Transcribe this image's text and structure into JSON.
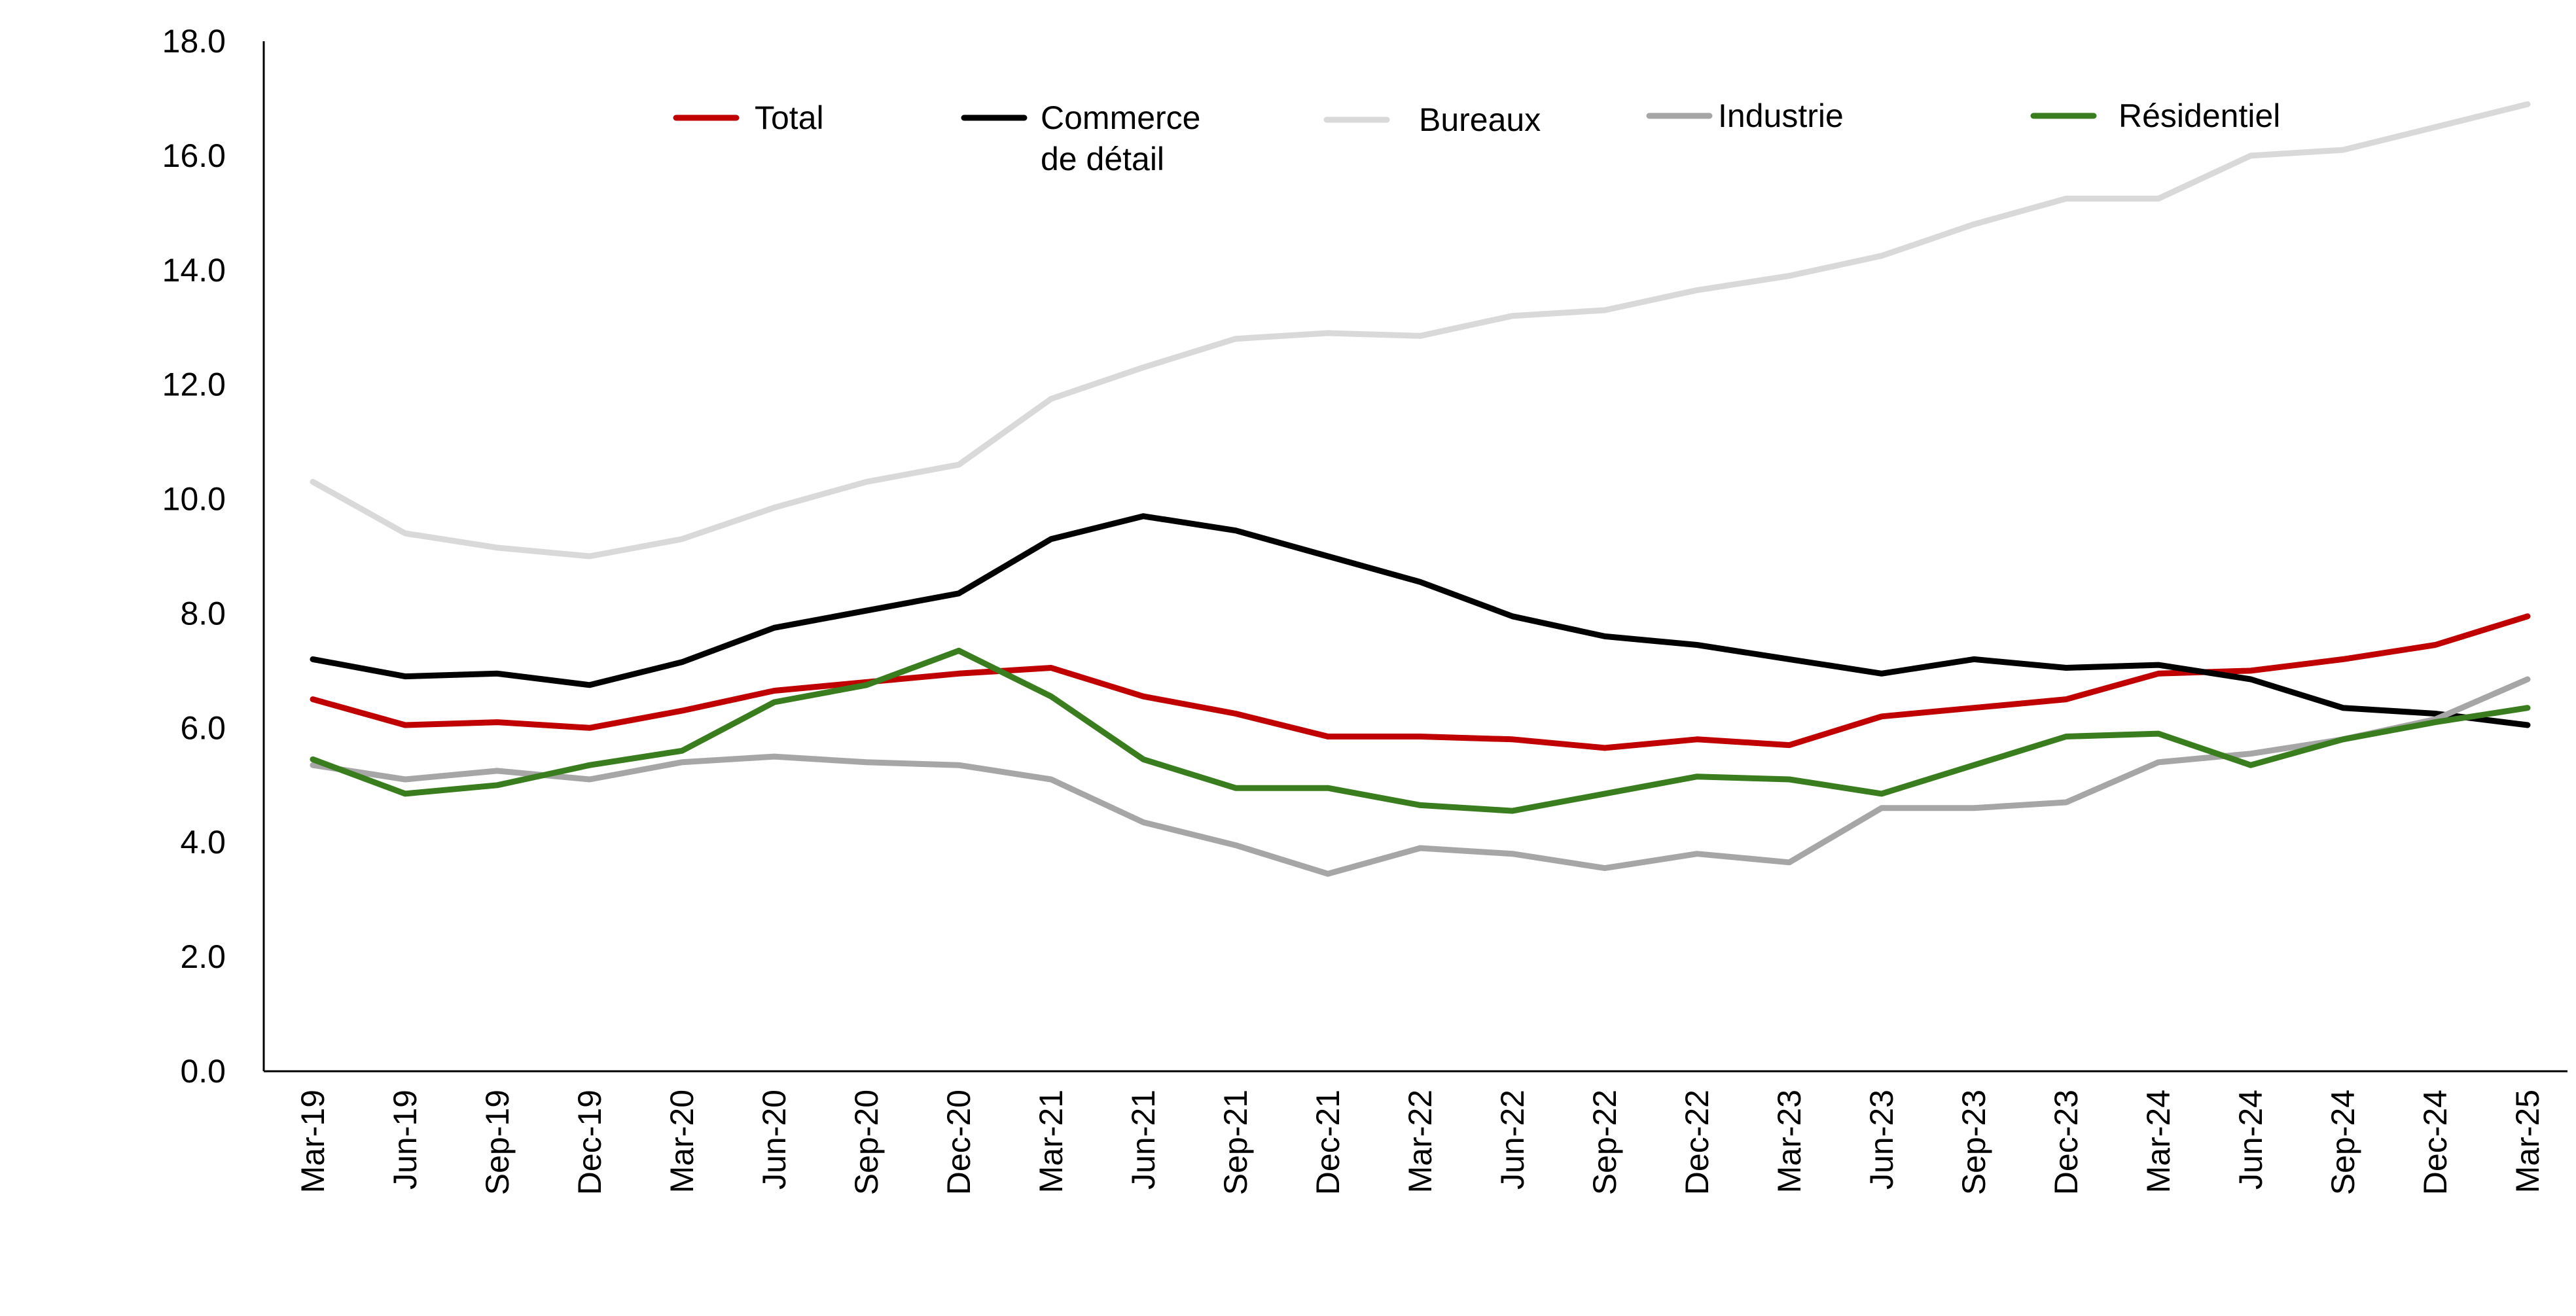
{
  "chart_data": {
    "type": "line",
    "title": "",
    "xlabel": "",
    "ylabel": "",
    "ylim": [
      0,
      18
    ],
    "y_ticks": [
      "0.0",
      "2.0",
      "4.0",
      "6.0",
      "8.0",
      "10.0",
      "12.0",
      "14.0",
      "16.0",
      "18.0"
    ],
    "grid": false,
    "legend_position": "top",
    "categories": [
      "Mar-19",
      "Jun-19",
      "Sep-19",
      "Dec-19",
      "Mar-20",
      "Jun-20",
      "Sep-20",
      "Dec-20",
      "Mar-21",
      "Jun-21",
      "Sep-21",
      "Dec-21",
      "Mar-22",
      "Jun-22",
      "Sep-22",
      "Dec-22",
      "Mar-23",
      "Jun-23",
      "Sep-23",
      "Dec-23",
      "Mar-24",
      "Jun-24",
      "Sep-24",
      "Dec-24",
      "Mar-25"
    ],
    "series": [
      {
        "name": "Total",
        "color": "#c00000",
        "values": [
          6.5,
          6.05,
          6.1,
          6.0,
          6.3,
          6.65,
          6.8,
          6.95,
          7.05,
          6.55,
          6.25,
          5.85,
          5.85,
          5.8,
          5.65,
          5.8,
          5.7,
          6.2,
          6.35,
          6.5,
          6.95,
          7.0,
          7.2,
          7.45,
          7.95
        ]
      },
      {
        "name": "Commerce de détail",
        "color": "#000000",
        "values": [
          7.2,
          6.9,
          6.95,
          6.75,
          7.15,
          7.75,
          8.05,
          8.35,
          9.3,
          9.7,
          9.45,
          9.0,
          8.55,
          7.95,
          7.6,
          7.45,
          7.2,
          6.95,
          7.2,
          7.05,
          7.1,
          6.85,
          6.35,
          6.25,
          6.05
        ]
      },
      {
        "name": "Bureaux",
        "color": "#d9d9d9",
        "values": [
          10.3,
          9.4,
          9.15,
          9.0,
          9.3,
          9.85,
          10.3,
          10.6,
          11.75,
          12.3,
          12.8,
          12.9,
          12.85,
          13.2,
          13.3,
          13.65,
          13.9,
          14.25,
          14.8,
          15.25,
          15.25,
          16.0,
          16.1,
          16.5,
          16.9
        ]
      },
      {
        "name": "Industrie",
        "color": "#a6a6a6",
        "values": [
          5.35,
          5.1,
          5.25,
          5.1,
          5.4,
          5.5,
          5.4,
          5.35,
          5.1,
          4.35,
          3.95,
          3.45,
          3.9,
          3.8,
          3.55,
          3.8,
          3.65,
          4.6,
          4.6,
          4.7,
          5.4,
          5.55,
          5.8,
          6.15,
          6.85
        ]
      },
      {
        "name": "Résidentiel",
        "color": "#3a7d1e",
        "values": [
          5.45,
          4.85,
          5.0,
          5.35,
          5.6,
          6.45,
          6.75,
          7.35,
          6.55,
          5.45,
          4.95,
          4.95,
          4.65,
          4.55,
          4.85,
          5.15,
          5.1,
          4.85,
          5.35,
          5.85,
          5.9,
          5.35,
          5.8,
          6.1,
          6.35
        ]
      }
    ],
    "legend_labels": [
      {
        "lines": [
          "Total"
        ]
      },
      {
        "lines": [
          "Commerce",
          "de détail"
        ]
      },
      {
        "lines": [
          "Bureaux"
        ]
      },
      {
        "lines": [
          "Industrie"
        ]
      },
      {
        "lines": [
          "Résidentiel"
        ]
      }
    ]
  }
}
